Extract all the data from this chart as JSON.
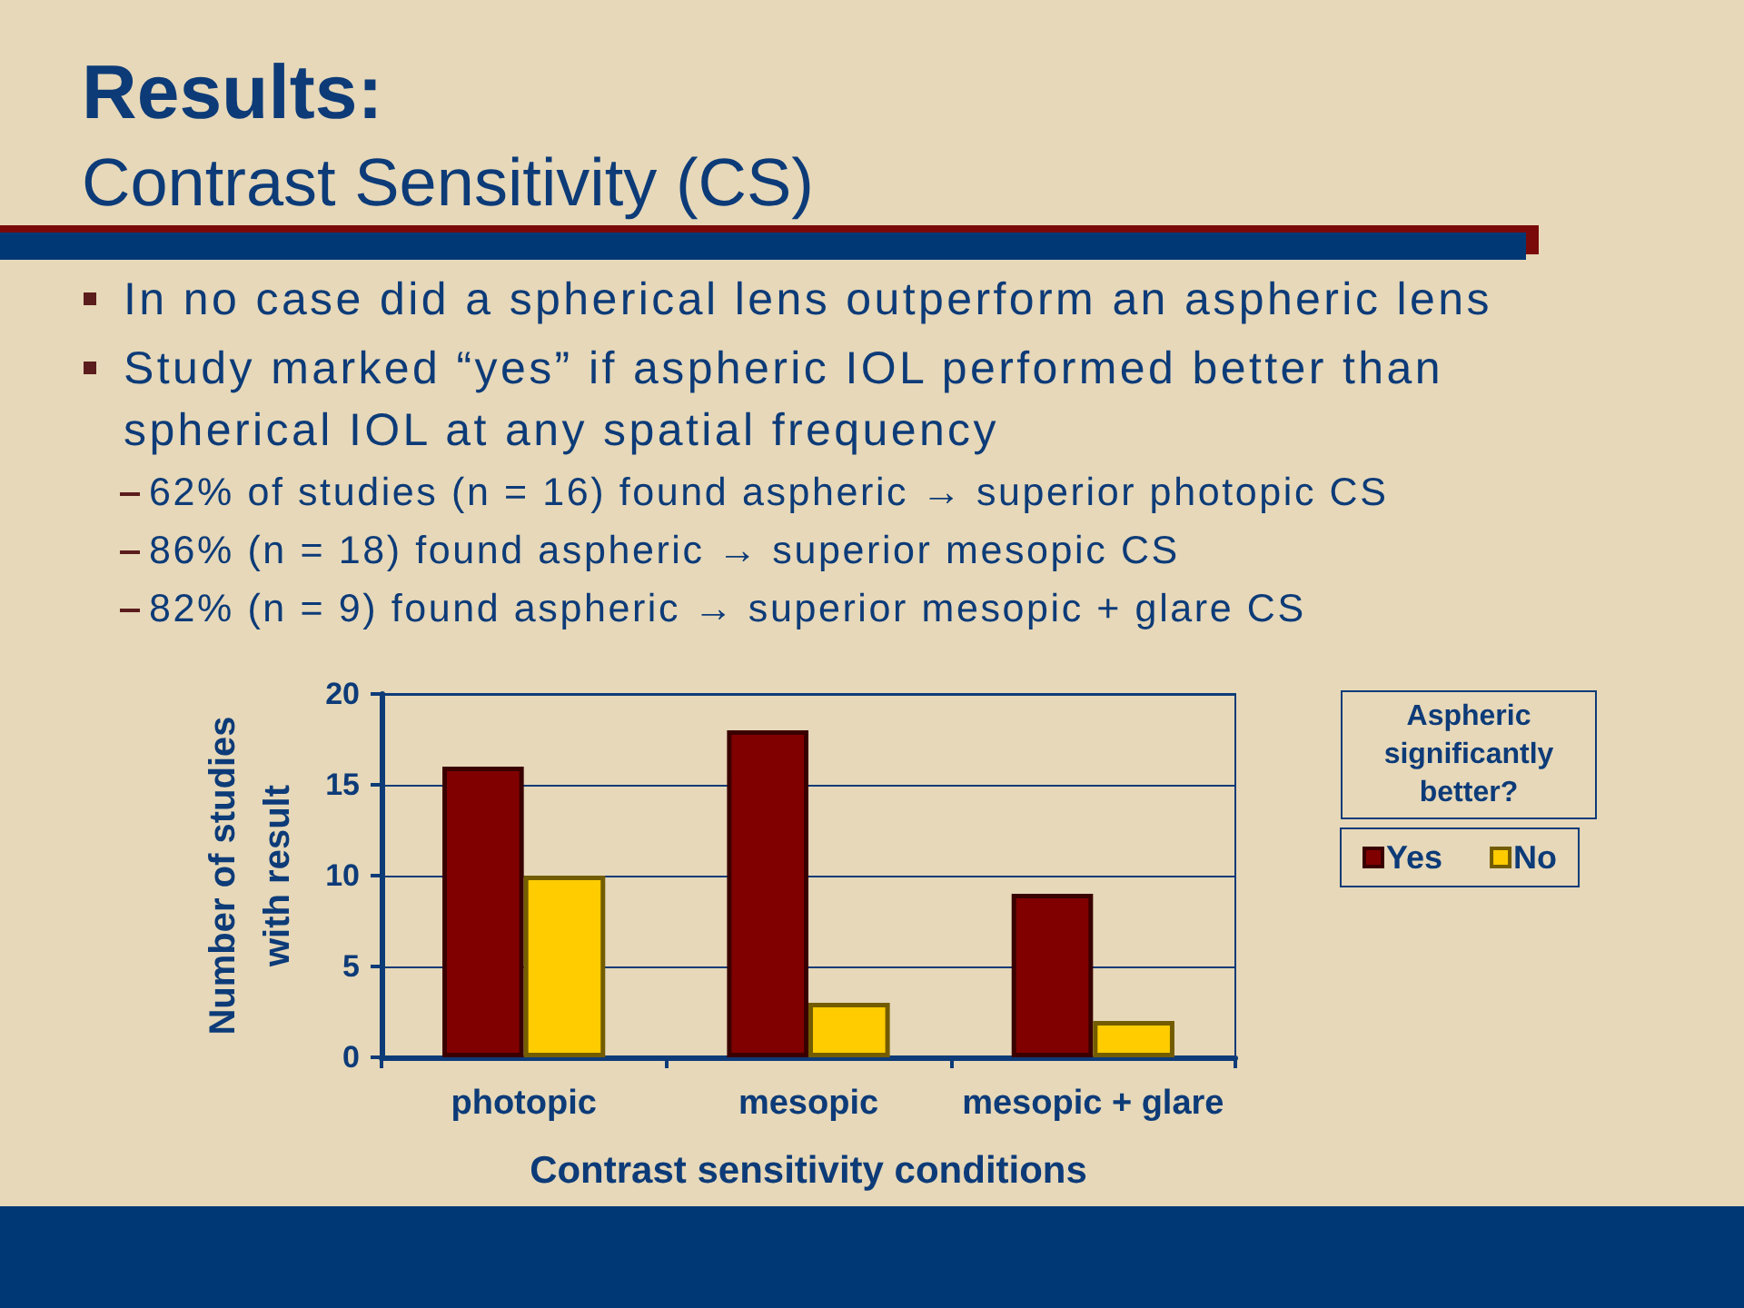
{
  "chart_data": {
    "type": "bar",
    "title": "Results:",
    "subtitle": "Contrast Sensitivity (CS)",
    "annotations": [
      "In no case did a spherical lens outperform an aspheric lens",
      "Study marked “yes” if aspheric IOL performed better than spherical IOL at any spatial frequency",
      "62% of studies (n = 16) found aspheric → superior photopic CS",
      "86% (n = 18) found aspheric → superior mesopic CS",
      "82% (n = 9) found aspheric → superior mesopic + glare CS"
    ],
    "categories": [
      "photopic",
      "mesopic",
      "mesopic + glare"
    ],
    "series": [
      {
        "name": "Yes",
        "color": "#800000",
        "values": [
          16,
          18,
          9
        ]
      },
      {
        "name": "No",
        "color": "#ffcc00",
        "values": [
          10,
          3,
          2
        ]
      }
    ],
    "xlabel": "Contrast sensitivity conditions",
    "ylabel": "Number of studies with result",
    "legend_title": "Aspheric significantly better?",
    "ylim": [
      0,
      20
    ],
    "yticks": [
      0,
      5,
      10,
      15,
      20
    ],
    "grid": "y",
    "legend": "top right"
  }
}
